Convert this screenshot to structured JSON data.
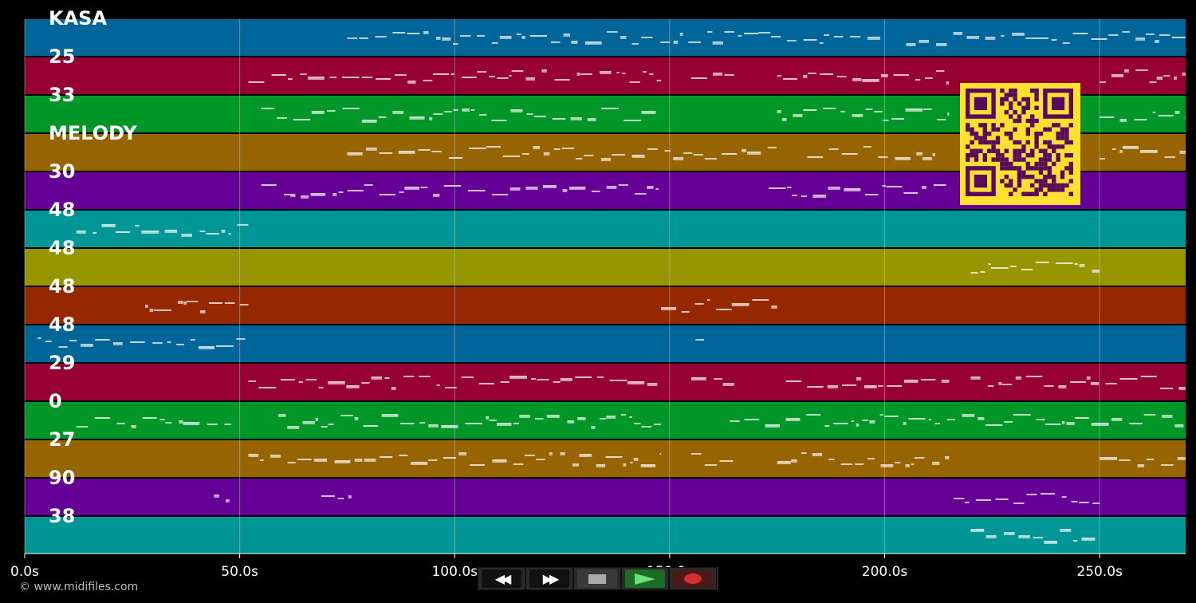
{
  "tracks": [
    {
      "label": "KASA",
      "color": "#00669a"
    },
    {
      "label": "25",
      "color": "#960032"
    },
    {
      "label": "33",
      "color": "#009628"
    },
    {
      "label": "MELODY",
      "color": "#966400"
    },
    {
      "label": "30",
      "color": "#640096"
    },
    {
      "label": "48",
      "color": "#009696"
    },
    {
      "label": "48",
      "color": "#969600"
    },
    {
      "label": "48",
      "color": "#962800"
    },
    {
      "label": "48",
      "color": "#00669a"
    },
    {
      "label": "29",
      "color": "#960032"
    },
    {
      "label": "0",
      "color": "#009628"
    },
    {
      "label": "27",
      "color": "#966400"
    },
    {
      "label": "90",
      "color": "#640096"
    },
    {
      "label": "38",
      "color": "#009696"
    }
  ],
  "timeline": {
    "labels": [
      "0.0s",
      "50.0s",
      "100.0s",
      "150.0s",
      "200.0s",
      "250.0s"
    ],
    "max_seconds": 270
  },
  "controls": {
    "rewind": "rewind-icon",
    "forward": "fast-forward-icon",
    "stop": "stop-icon",
    "play": "play-icon",
    "record": "record-icon"
  },
  "copyright": "© www.midifiles.com",
  "colors": {
    "background": "#000000",
    "grid": "#cfcfcf",
    "notes": "#ffffff",
    "qr_bg": "#ffe033",
    "qr_fg": "#5a0a5a"
  }
}
